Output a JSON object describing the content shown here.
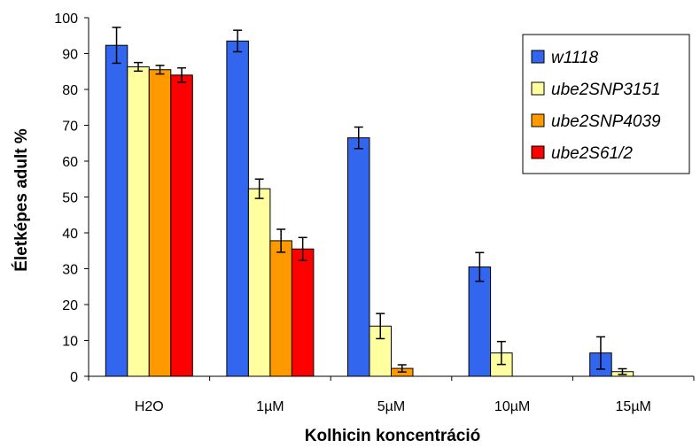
{
  "chart_data": {
    "type": "bar",
    "categories": [
      "H2O",
      "1µM",
      "5µM",
      "10µM",
      "15µM"
    ],
    "series": [
      {
        "name": "w1118",
        "color": "#3366ee",
        "values": [
          92.3,
          93.5,
          66.5,
          30.5,
          6.5
        ],
        "errors": [
          5.0,
          3.0,
          3.0,
          4.0,
          4.5
        ]
      },
      {
        "name": "ube2SNP3151",
        "color": "#ffffa0",
        "values": [
          86.3,
          52.3,
          14.0,
          6.5,
          1.3
        ],
        "errors": [
          1.2,
          2.7,
          3.5,
          3.2,
          0.8
        ]
      },
      {
        "name": "ube2SNP4039",
        "color": "#ff9900",
        "values": [
          85.5,
          37.8,
          2.2,
          0,
          0
        ],
        "errors": [
          1.2,
          3.2,
          1.0,
          0,
          0
        ]
      },
      {
        "name": "ube2S61/2",
        "color": "#ff0000",
        "values": [
          84.0,
          35.5,
          0,
          0,
          0
        ],
        "errors": [
          2.0,
          3.2,
          0,
          0,
          0
        ]
      }
    ],
    "xlabel": "Kolhicin koncentráció",
    "ylabel": "Életképes adult %",
    "ylim": [
      0,
      100
    ],
    "yticks": [
      0,
      10,
      20,
      30,
      40,
      50,
      60,
      70,
      80,
      90,
      100
    ],
    "grid": false,
    "legend": "top-right"
  }
}
